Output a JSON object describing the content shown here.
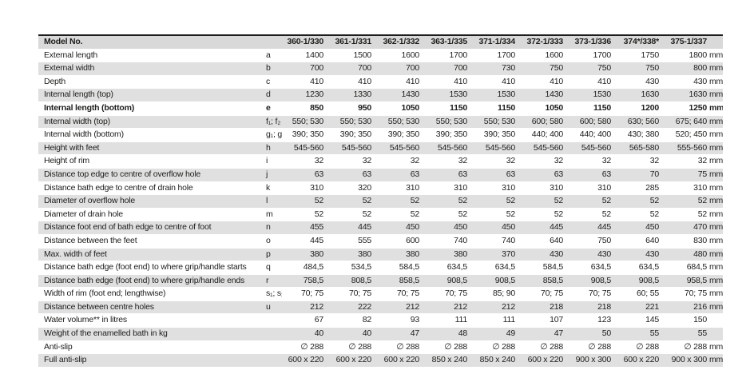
{
  "colors": {
    "stripe_row_bg": "#e0e0e0",
    "header_row_bg": "#d9d9d9",
    "top_border": "#1d1d1b",
    "text": "#1d1d1b",
    "page_bg": "#ffffff"
  },
  "table": {
    "header": {
      "label": "Model No.",
      "code": "",
      "models": [
        "360-1/330",
        "361-1/331",
        "362-1/332",
        "363-1/335",
        "371-1/334",
        "372-1/333",
        "373-1/336",
        "374*/338*",
        "375-1/337"
      ],
      "unit": ""
    },
    "rows": [
      {
        "label": "External length",
        "code": "a",
        "values": [
          "1400",
          "1500",
          "1600",
          "1700",
          "1700",
          "1600",
          "1700",
          "1750",
          "1800"
        ],
        "unit": "mm",
        "bold": false
      },
      {
        "label": "External width",
        "code": "b",
        "values": [
          "700",
          "700",
          "700",
          "700",
          "730",
          "750",
          "750",
          "750",
          "800"
        ],
        "unit": "mm",
        "bold": false
      },
      {
        "label": "Depth",
        "code": "c",
        "values": [
          "410",
          "410",
          "410",
          "410",
          "410",
          "410",
          "410",
          "430",
          "430"
        ],
        "unit": "mm",
        "bold": false
      },
      {
        "label": "Internal length (top)",
        "code": "d",
        "values": [
          "1230",
          "1330",
          "1430",
          "1530",
          "1530",
          "1430",
          "1530",
          "1630",
          "1630"
        ],
        "unit": "mm",
        "bold": false
      },
      {
        "label": "Internal length (bottom)",
        "code": "e",
        "values": [
          "850",
          "950",
          "1050",
          "1150",
          "1150",
          "1050",
          "1150",
          "1200",
          "1250"
        ],
        "unit": "mm",
        "bold": true
      },
      {
        "label": "Internal width (top)",
        "code": "f₁; f₂",
        "values": [
          "550; 530",
          "550; 530",
          "550; 530",
          "550; 530",
          "550; 530",
          "600; 580",
          "600; 580",
          "630; 560",
          "675; 640"
        ],
        "unit": "mm",
        "bold": false
      },
      {
        "label": "Internal width (bottom)",
        "code": "g₁; g₂",
        "values": [
          "390; 350",
          "390; 350",
          "390; 350",
          "390; 350",
          "390; 350",
          "440; 400",
          "440; 400",
          "430; 380",
          "520; 450"
        ],
        "unit": "mm",
        "bold": false
      },
      {
        "label": "Height with feet",
        "code": "h",
        "values": [
          "545-560",
          "545-560",
          "545-560",
          "545-560",
          "545-560",
          "545-560",
          "545-560",
          "565-580",
          "555-560"
        ],
        "unit": "mm",
        "bold": false
      },
      {
        "label": "Height of rim",
        "code": "i",
        "values": [
          "32",
          "32",
          "32",
          "32",
          "32",
          "32",
          "32",
          "32",
          "32"
        ],
        "unit": "mm",
        "bold": false
      },
      {
        "label": "Distance top edge to centre of overflow hole",
        "code": "j",
        "values": [
          "63",
          "63",
          "63",
          "63",
          "63",
          "63",
          "63",
          "70",
          "75"
        ],
        "unit": "mm",
        "bold": false
      },
      {
        "label": "Distance bath edge to centre of drain hole",
        "code": "k",
        "values": [
          "310",
          "320",
          "310",
          "310",
          "310",
          "310",
          "310",
          "285",
          "310"
        ],
        "unit": "mm",
        "bold": false
      },
      {
        "label": "Diameter of overflow hole",
        "code": "l",
        "values": [
          "52",
          "52",
          "52",
          "52",
          "52",
          "52",
          "52",
          "52",
          "52"
        ],
        "unit": "mm",
        "bold": false
      },
      {
        "label": "Diameter of drain hole",
        "code": "m",
        "values": [
          "52",
          "52",
          "52",
          "52",
          "52",
          "52",
          "52",
          "52",
          "52"
        ],
        "unit": "mm",
        "bold": false
      },
      {
        "label": "Distance foot end of bath edge to centre of foot",
        "code": "n",
        "values": [
          "455",
          "445",
          "450",
          "450",
          "450",
          "445",
          "445",
          "450",
          "470"
        ],
        "unit": "mm",
        "bold": false
      },
      {
        "label": "Distance between the feet",
        "code": "o",
        "values": [
          "445",
          "555",
          "600",
          "740",
          "740",
          "640",
          "750",
          "640",
          "830"
        ],
        "unit": "mm",
        "bold": false
      },
      {
        "label": "Max. width of feet",
        "code": "p",
        "values": [
          "380",
          "380",
          "380",
          "380",
          "370",
          "430",
          "430",
          "430",
          "480"
        ],
        "unit": "mm",
        "bold": false
      },
      {
        "label": "Distance bath edge (foot end) to where grip/handle starts",
        "code": "q",
        "values": [
          "484,5",
          "534,5",
          "584,5",
          "634,5",
          "634,5",
          "584,5",
          "634,5",
          "634,5",
          "684,5"
        ],
        "unit": "mm",
        "bold": false
      },
      {
        "label": "Distance bath edge (foot end) to where grip/handle ends",
        "code": "r",
        "values": [
          "758,5",
          "808,5",
          "858,5",
          "908,5",
          "908,5",
          "858,5",
          "908,5",
          "908,5",
          "958,5"
        ],
        "unit": "mm",
        "bold": false
      },
      {
        "label": "Width of rim (foot end; lengthwise)",
        "code": "s₁; s₂",
        "values": [
          "70; 75",
          "70; 75",
          "70; 75",
          "70; 75",
          "85; 90",
          "70; 75",
          "70; 75",
          "60; 55",
          "70; 75"
        ],
        "unit": "mm",
        "bold": false
      },
      {
        "label": "Distance between centre holes",
        "code": "u",
        "values": [
          "212",
          "222",
          "212",
          "212",
          "212",
          "218",
          "218",
          "221",
          "216"
        ],
        "unit": "mm",
        "bold": false
      },
      {
        "label": "Water volume** in litres",
        "code": "",
        "values": [
          "67",
          "82",
          "93",
          "111",
          "111",
          "107",
          "123",
          "145",
          "150"
        ],
        "unit": "",
        "bold": false
      },
      {
        "label": "Weight of the enamelled bath in kg",
        "code": "",
        "values": [
          "40",
          "40",
          "47",
          "48",
          "49",
          "47",
          "50",
          "55",
          "55"
        ],
        "unit": "",
        "bold": false
      },
      {
        "label": "Anti-slip",
        "code": "",
        "values": [
          "∅ 288",
          "∅ 288",
          "∅ 288",
          "∅ 288",
          "∅ 288",
          "∅ 288",
          "∅ 288",
          "∅ 288",
          "∅ 288"
        ],
        "unit": "mm",
        "bold": false
      },
      {
        "label": "Full anti-slip",
        "code": "",
        "values": [
          "600 x 220",
          "600 x 220",
          "600 x 220",
          "850 x 240",
          "850 x 240",
          "600 x 220",
          "900 x 300",
          "600 x 220",
          "900 x 300"
        ],
        "unit": "mm",
        "bold": false
      }
    ]
  }
}
